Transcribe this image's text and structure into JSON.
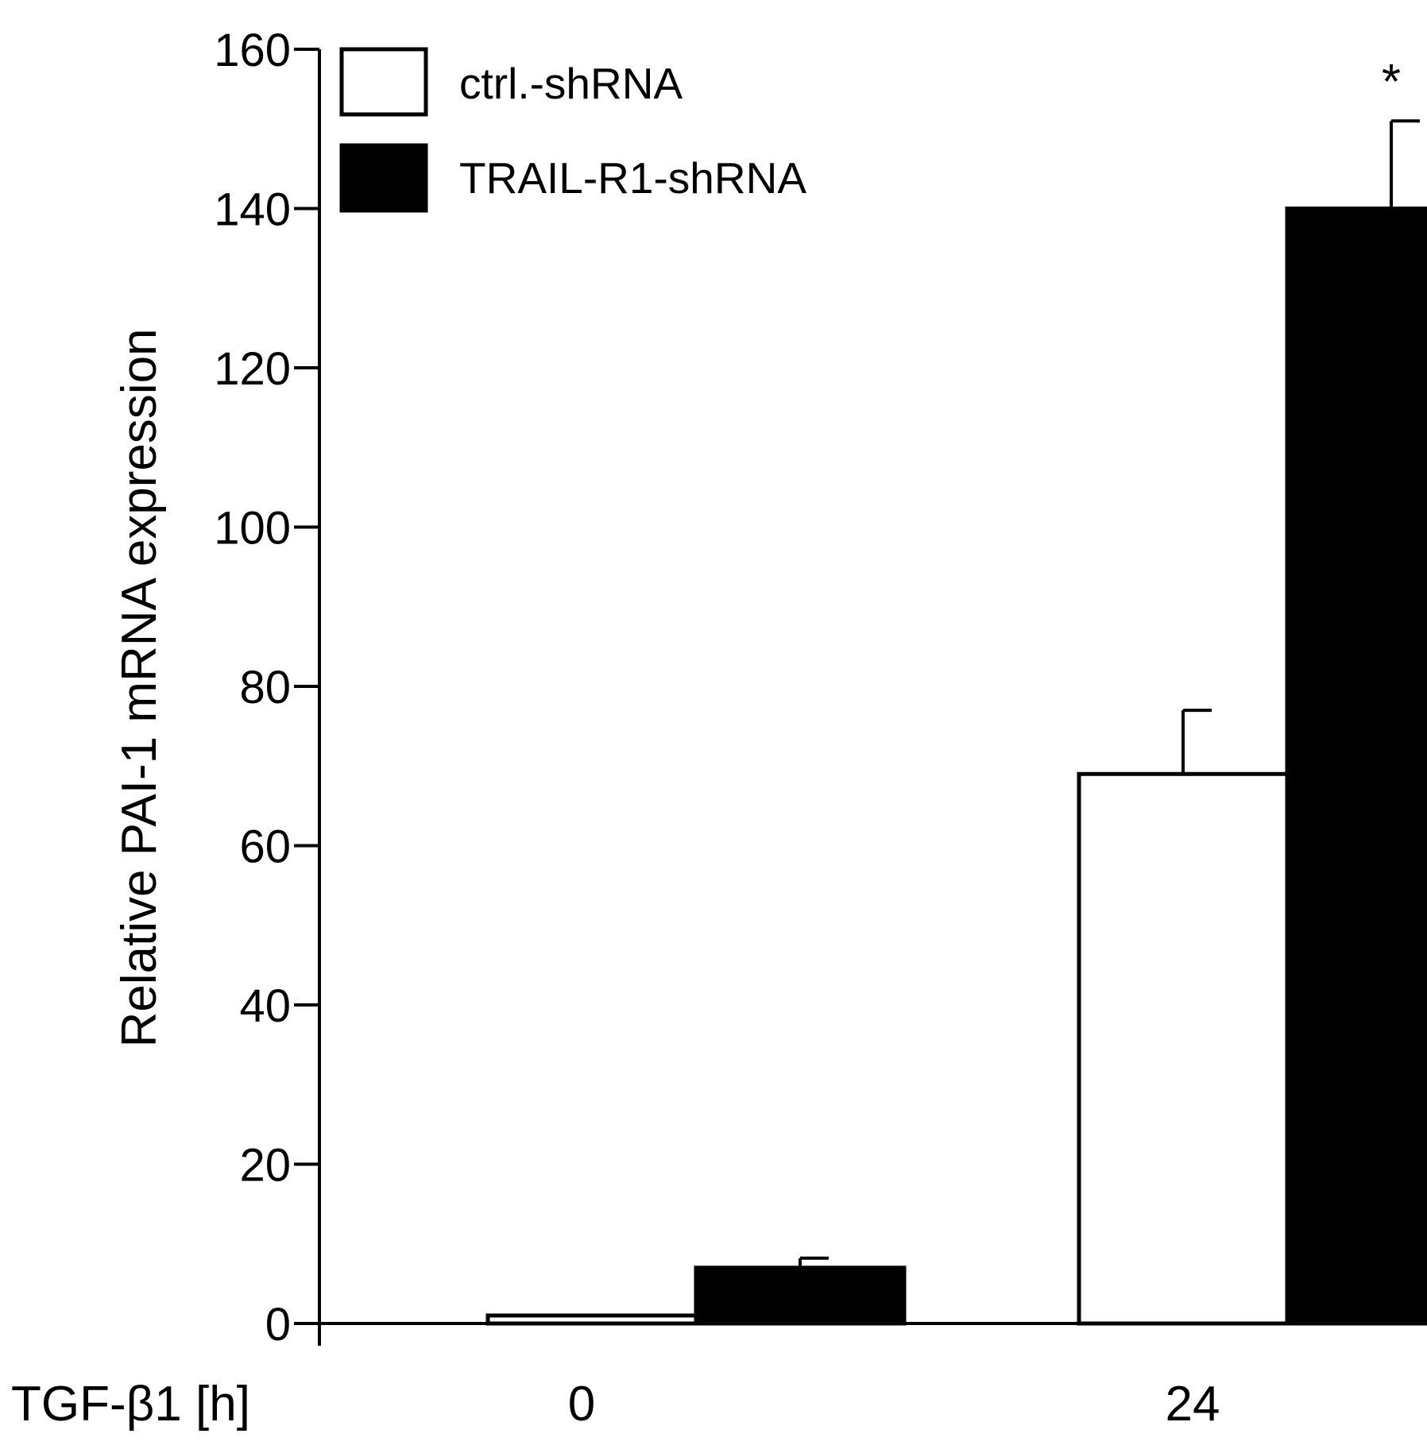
{
  "chart_data": {
    "type": "bar",
    "ylabel": "Relative PAI-1 mRNA expression",
    "xlabel": "TGF-β1 [h]",
    "categories": [
      "0",
      "24"
    ],
    "ylim": [
      0,
      160
    ],
    "yticks": [
      0,
      20,
      40,
      60,
      80,
      100,
      120,
      140,
      160
    ],
    "ytick_labels": [
      "0",
      "20",
      "40",
      "60",
      "80",
      "100",
      "120",
      "140",
      "160"
    ],
    "series": [
      {
        "name": "ctrl.-shRNA",
        "fill": "#ffffff",
        "values": [
          1,
          69
        ],
        "errors": [
          0,
          8
        ]
      },
      {
        "name": "TRAIL-R1-shRNA",
        "fill": "#000000",
        "values": [
          7,
          140
        ],
        "errors": [
          1.2,
          11
        ]
      }
    ],
    "annotations": [
      {
        "text": "*",
        "category": "24",
        "series": "TRAIL-R1-shRNA"
      }
    ],
    "legend": {
      "position": "top-left"
    },
    "grid": false
  }
}
